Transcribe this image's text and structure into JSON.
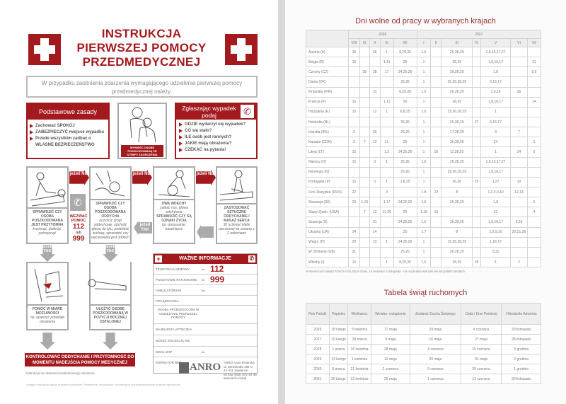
{
  "left": {
    "title": [
      "INSTRUKCJA",
      "PIERWSZEJ POMOCY",
      "PRZEDMEDYCZNEJ"
    ],
    "intro": "W przypadku zaistnienia zdarzenia wymagającego udzielenia pierwszej pomocy przedmedycznej należy:",
    "rules": {
      "header": "Podstawowe zasady",
      "items": [
        "Zachować SPOKÓJ",
        "ZABEZPIECZYĆ miejsce wypadku",
        "Przede wszystkim zadbać o"
      ],
      "last": "WŁASNE BEZPIECZEŃSTWO"
    },
    "evacuate": "WYNIEŚĆ OSOBĘ POSZKODOWANĄ ZE STREFY ZAGROŻENIA",
    "report": {
      "header": "Zgłaszając wypadek podaj",
      "items": [
        "GDZIE wydarzył się wypadek?",
        "CO się stało?",
        "ILE osób jest rannych?",
        "JAKIE mają obrażenia?",
        "CZEKAĆ na pytania!"
      ]
    },
    "steps": [
      {
        "bold": "SPRAWDZIĆ CZY OSOBA POSZKODOWANA JEST PRZYTOMNA",
        "note": "krzyknąć, dotknąć, potrząsnąć"
      },
      {
        "bold": "SPRAWDZIĆ CZY OSOBA POSZKODOWANA ODDYCHA",
        "note": "oczyścić drogi oddechowe, odchylić głowę do tyłu, podwieść żuchwę, sprawdzić czy wyczuwalny jest oddech"
      },
      {
        "bold": "DWA WDECHY",
        "note": "zatkać nos, głowa odchylona",
        "bold2": "SPRAWDZIĆ CZY SĄ OZNAKI ŻYCIA",
        "note2": "np. poruszanie, kaszlnięcie"
      },
      {
        "bold": "ZASTOSOWAĆ SZTUCZNE ODDYCHANIE I MASAŻ SERCA",
        "note": "30 uciśnięć klatki piersiowej na zmianę z 2 wdechami"
      }
    ],
    "if_no": "jeżeli NIE",
    "if_yes": "jeżeli TAK",
    "call": {
      "label": "WEZWAĆ POMOC",
      "n1": "112",
      "or": "lub",
      "n2": "999"
    },
    "help": {
      "bold": "POMÓC W MIARĘ MOŻLIWOŚCI",
      "note": "np. opatrzyć powstałe obrażenia"
    },
    "recovery": "UŁOŻYĆ OSOBĘ POSZKODOWANĄ W POZYCJI BOCZNEJ USTALONEJ",
    "info": {
      "header": "WAŻNE INFORMACJE",
      "tel": "tel.",
      "rows": [
        {
          "label": "TELEFON ALARMOWY",
          "value": "112"
        },
        {
          "label": "POGOTOWIE RATUNKOWE",
          "value": "999"
        },
        {
          "label": "AMBULATORIUM"
        },
        {
          "label": "PIELĘGNIARKA"
        },
        {
          "label": "OSOBA PRZESZKOLONA W UDZIELANIU PIERWSZEJ POMOCY"
        },
        {
          "label": "NAJBLIŻSZA APTECZKA"
        },
        {
          "label": "NOSZE ZNAJDUJĄ SIĘ"
        },
        {
          "label": "DZIAŁ BHP"
        },
        {
          "label": "INSPEKTOR BHP"
        }
      ]
    },
    "banner": "KONTROLOWAĆ ODDYCHANIE I PRZYTOMNOŚĆ DO MOMENTU NADEJŚCIA POMOCY MEDYCZNEJ",
    "note": "Instrukcja nie stanowi kompleksowego szkolenia.",
    "footer": "Uwaga! Instrukcja objęta prawami autorskimi. Powielanie, kopiowanie i komercyjne rozpowszechnianie prawnie zabronione.",
    "logo": "ANRO",
    "address": [
      "ANRO Anna Rotarska",
      "ul. Siewierska 196 C",
      "42-431 Zawiercie",
      "tel./fax (032) 672-42-48",
      "www.anro.net.pl"
    ]
  },
  "right": {
    "title": "Dni wolne od pracy w wybranych krajach",
    "years": [
      "2026",
      "2027"
    ],
    "months": [
      "VIII",
      "IX",
      "X",
      "XI",
      "XII",
      "I",
      "II",
      "III",
      "IV",
      "V",
      "VI",
      "VII"
    ],
    "rows": [
      [
        "Austria (A)",
        "15",
        "",
        "26",
        "1",
        "8,25,26",
        "1,6",
        "",
        "26,28,29",
        "",
        "1,6,16,17,27",
        "",
        ""
      ],
      [
        "Belgia (B)",
        "15",
        "",
        "",
        "1,11",
        "25",
        "1",
        "",
        "28,29",
        "",
        "1,6,16,17",
        "",
        "21"
      ],
      [
        "Czechy (CZ)",
        "",
        "28",
        "28",
        "17",
        "24,25,26",
        "1",
        "",
        "26,28,29",
        "",
        "1,8",
        "",
        "5,6"
      ],
      [
        "Dania (DK)",
        "",
        "",
        "",
        "",
        "25,26",
        "1",
        "",
        "25,26,28,29",
        "",
        "6,16,17",
        "",
        ""
      ],
      [
        "Finlandia (FIN)",
        "",
        "",
        "31",
        "",
        "6,25,26",
        "1,6",
        "",
        "26,28,29",
        "",
        "1,6,16",
        "26",
        ""
      ],
      [
        "Francja (F)",
        "15",
        "",
        "",
        "1,11",
        "25",
        "1",
        "",
        "28,29",
        "",
        "1,8,16,17",
        "",
        "14"
      ],
      [
        "Hiszpania (E)",
        "15",
        "",
        "12",
        "1",
        "6,8,25",
        "1,6",
        "",
        "25,26,28,29",
        "",
        "1",
        "",
        ""
      ],
      [
        "Holandia (NL)",
        "",
        "",
        "",
        "",
        "25,26",
        "1",
        "",
        "26,28,29",
        "27",
        "5,16,17",
        "",
        ""
      ],
      [
        "Irlandia (IRL)",
        "3",
        "",
        "26",
        "",
        "25,26",
        "1",
        "",
        "17,28,29",
        "",
        "3",
        "7",
        ""
      ],
      [
        "Kanada (CDN)",
        "3",
        "7",
        "12",
        "11",
        "25",
        "1",
        "",
        "26,28,29",
        "",
        "24",
        "",
        "1"
      ],
      [
        "Litwa (LT)",
        "15",
        "",
        "",
        "1,2",
        "24,25,26",
        "1",
        "16",
        "11,28,29",
        "",
        "1",
        "24",
        "6"
      ],
      [
        "Niemcy (D)",
        "15",
        "",
        "3",
        "1",
        "25,26",
        "1,6",
        "",
        "26,28,29",
        "",
        "1,6,16,17,27",
        "",
        ""
      ],
      [
        "Norwegia (N)",
        "",
        "",
        "",
        "",
        "25,26",
        "1",
        "",
        "25,26,28,29",
        "",
        "1,6,16,17",
        "",
        ""
      ],
      [
        "Portugalia (P)",
        "15",
        "",
        "5",
        "1",
        "1,8,25",
        "1",
        "",
        "26,28",
        "25",
        "1,27",
        "10",
        ""
      ],
      [
        "Fed. Rosyjska (RUS)",
        "22",
        "",
        "",
        "4",
        "",
        "1-8",
        "23",
        "8",
        "",
        "1,2,3,9,10",
        "12,14",
        ""
      ],
      [
        "Słowacja (SK)",
        "29",
        "1,15",
        "",
        "1,17",
        "24,25,26",
        "1,6",
        "",
        "26,28,29",
        "",
        "1,8",
        "",
        "5"
      ],
      [
        "Stany Zjedn. (USA)",
        "",
        "7",
        "12",
        "11,26",
        "25",
        "1,18",
        "15",
        "",
        "",
        "31",
        "",
        "4"
      ],
      [
        "Szwecja (S)",
        "",
        "",
        "31",
        "",
        "24,25,26",
        "1,6",
        "",
        "26,28,29",
        "",
        "1,6,16,17",
        "6,26",
        ""
      ],
      [
        "Ukraina (UA)",
        "24",
        "",
        "14",
        "",
        "25",
        "1,7",
        "",
        "8",
        "",
        "1,2,9,10",
        "20,21,28",
        ""
      ],
      [
        "Węgry (H)",
        "20",
        "",
        "23",
        "1",
        "24,25,26",
        "1",
        "",
        "15,26,28,29",
        "",
        "1,16,17",
        "",
        ""
      ],
      [
        "W. Brytania (GB)",
        "31",
        "",
        "",
        "",
        "25,26",
        "1",
        "",
        "26,28,29",
        "",
        "3,31",
        "",
        ""
      ],
      [
        "Włochy (I)",
        "15",
        "",
        "",
        "1",
        "8,25,26",
        "1,6",
        "",
        "28,29",
        "25",
        "1",
        "2",
        ""
      ]
    ],
    "footnote": "W Niemczech święta Trzech Króli, Boże Ciało, 15 sierpnia i 1 listopada - nie są dniami wolnymi we wszystkich landach",
    "title2": "Tabela świąt ruchomych",
    "headers2": [
      "Rok Pański",
      "Popielec",
      "Wielkanoc",
      "Wniebo- wstąpienie",
      "Zesłanie Ducha Świętego",
      "Ciała i Krwi Pańskiej",
      "I Niedziela Adwentu"
    ],
    "rows2": [
      [
        "2026",
        "18 lutego",
        "5 kwietnia",
        "17 maja",
        "24 maja",
        "4 czerwca",
        "29 listopada"
      ],
      [
        "2027",
        "10 lutego",
        "28 marca",
        "9 maja",
        "16 maja",
        "27 maja",
        "28 listopada"
      ],
      [
        "2028",
        "1 marca",
        "16 kwietnia",
        "28 maja",
        "4 czerwca",
        "15 czerwca",
        "3 grudnia"
      ],
      [
        "2029",
        "14 lutego",
        "1 kwietnia",
        "13 maja",
        "20 maja",
        "31 maja",
        "2 grudnia"
      ],
      [
        "2030",
        "6 marca",
        "21 kwietnia",
        "2 czerwca",
        "9 czerwca",
        "20 czerwca",
        "1 grudnia"
      ],
      [
        "2031",
        "26 lutego",
        "13 kwietnia",
        "25 maja",
        "1 czerwca",
        "12 czerwca",
        "30 listopada"
      ]
    ]
  },
  "colors": {
    "brand_red": "#a31a1e",
    "title_red": "#9b2c2c",
    "gray": "#aaaaaa"
  }
}
